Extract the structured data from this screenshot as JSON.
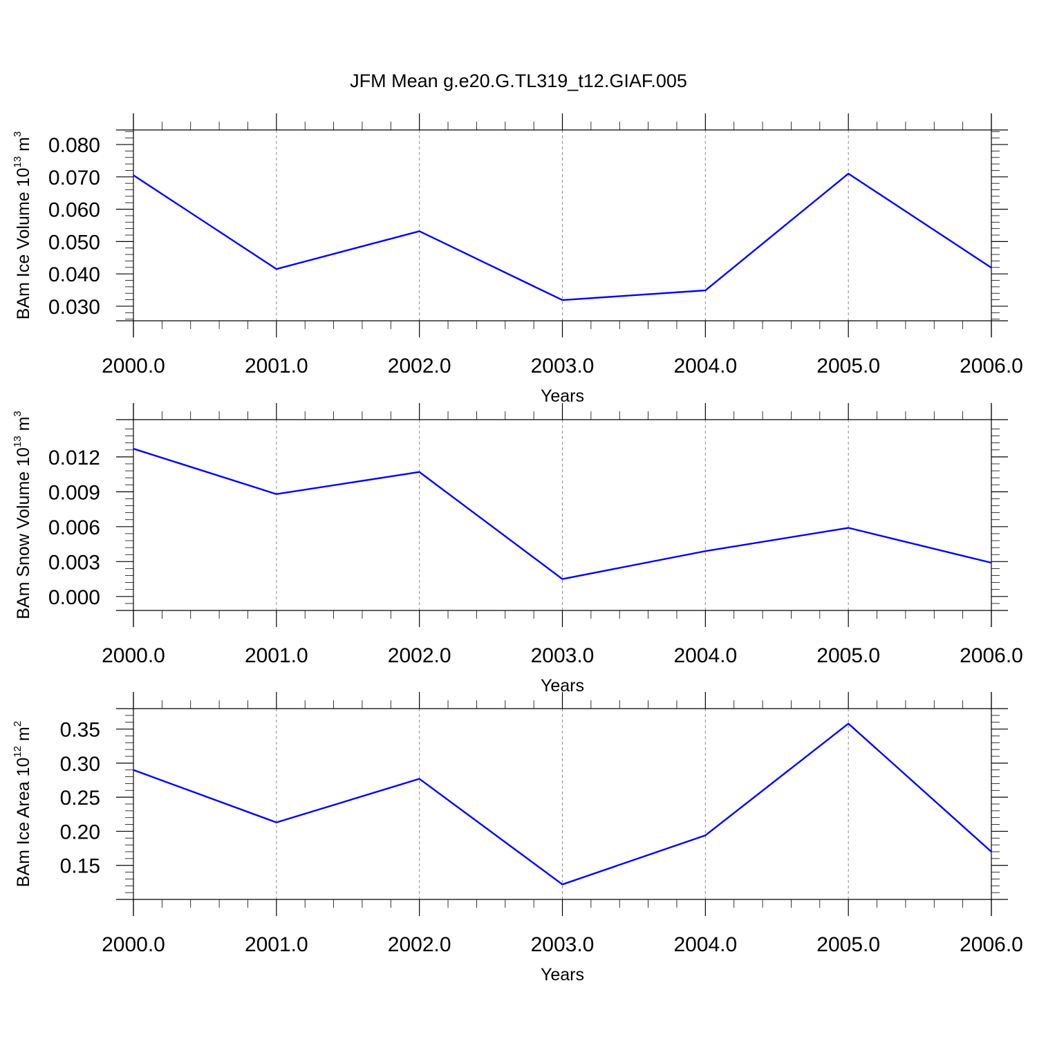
{
  "title": "JFM Mean g.e20.G.TL319_t12.GIAF.005",
  "colors": {
    "line": "#0000ff",
    "axis": "#000000",
    "grid": "#888888"
  },
  "chart_data": [
    {
      "type": "line",
      "xlabel": "Years",
      "ylabel": {
        "prefix": "BAm Ice Volume 10",
        "exp": "13",
        "unit": " m",
        "unit_exp": "3"
      },
      "xlim": [
        2000,
        2006
      ],
      "ylim": [
        0.0255,
        0.0845
      ],
      "xticks": [
        2000,
        2001,
        2002,
        2003,
        2004,
        2005,
        2006
      ],
      "xtick_labels": [
        "2000.0",
        "2001.0",
        "2002.0",
        "2003.0",
        "2004.0",
        "2005.0",
        "2006.0"
      ],
      "yticks": [
        0.03,
        0.04,
        0.05,
        0.06,
        0.07,
        0.08
      ],
      "ytick_labels": [
        "0.030",
        "0.040",
        "0.050",
        "0.060",
        "0.070",
        "0.080"
      ],
      "x": [
        2000,
        2001,
        2002,
        2003,
        2004,
        2005,
        2006
      ],
      "values": [
        0.0705,
        0.0415,
        0.0532,
        0.0319,
        0.0349,
        0.071,
        0.0419
      ],
      "vgrid": true
    },
    {
      "type": "line",
      "xlabel": "Years",
      "ylabel": {
        "prefix": "BAm Snow Volume 10",
        "exp": "13",
        "unit": " m",
        "unit_exp": "3"
      },
      "xlim": [
        2000,
        2006
      ],
      "ylim": [
        -0.0012,
        0.0152
      ],
      "xticks": [
        2000,
        2001,
        2002,
        2003,
        2004,
        2005,
        2006
      ],
      "xtick_labels": [
        "2000.0",
        "2001.0",
        "2002.0",
        "2003.0",
        "2004.0",
        "2005.0",
        "2006.0"
      ],
      "yticks": [
        0.0,
        0.003,
        0.006,
        0.009,
        0.012
      ],
      "ytick_labels": [
        "0.000",
        "0.003",
        "0.006",
        "0.009",
        "0.012"
      ],
      "x": [
        2000,
        2001,
        2002,
        2003,
        2004,
        2005,
        2006
      ],
      "values": [
        0.0127,
        0.0088,
        0.0107,
        0.0015,
        0.0039,
        0.0059,
        0.0029
      ],
      "vgrid": true
    },
    {
      "type": "line",
      "xlabel": "Years",
      "ylabel": {
        "prefix": "BAm Ice Area 10",
        "exp": "12",
        "unit": " m",
        "unit_exp": "2"
      },
      "xlim": [
        2000,
        2006
      ],
      "ylim": [
        0.1,
        0.38
      ],
      "xticks": [
        2000,
        2001,
        2002,
        2003,
        2004,
        2005,
        2006
      ],
      "xtick_labels": [
        "2000.0",
        "2001.0",
        "2002.0",
        "2003.0",
        "2004.0",
        "2005.0",
        "2006.0"
      ],
      "yticks": [
        0.15,
        0.2,
        0.25,
        0.3,
        0.35
      ],
      "ytick_labels": [
        "0.15",
        "0.20",
        "0.25",
        "0.30",
        "0.35"
      ],
      "x": [
        2000,
        2001,
        2002,
        2003,
        2004,
        2005,
        2006
      ],
      "values": [
        0.29,
        0.213,
        0.277,
        0.122,
        0.194,
        0.358,
        0.17
      ],
      "vgrid": true
    }
  ]
}
